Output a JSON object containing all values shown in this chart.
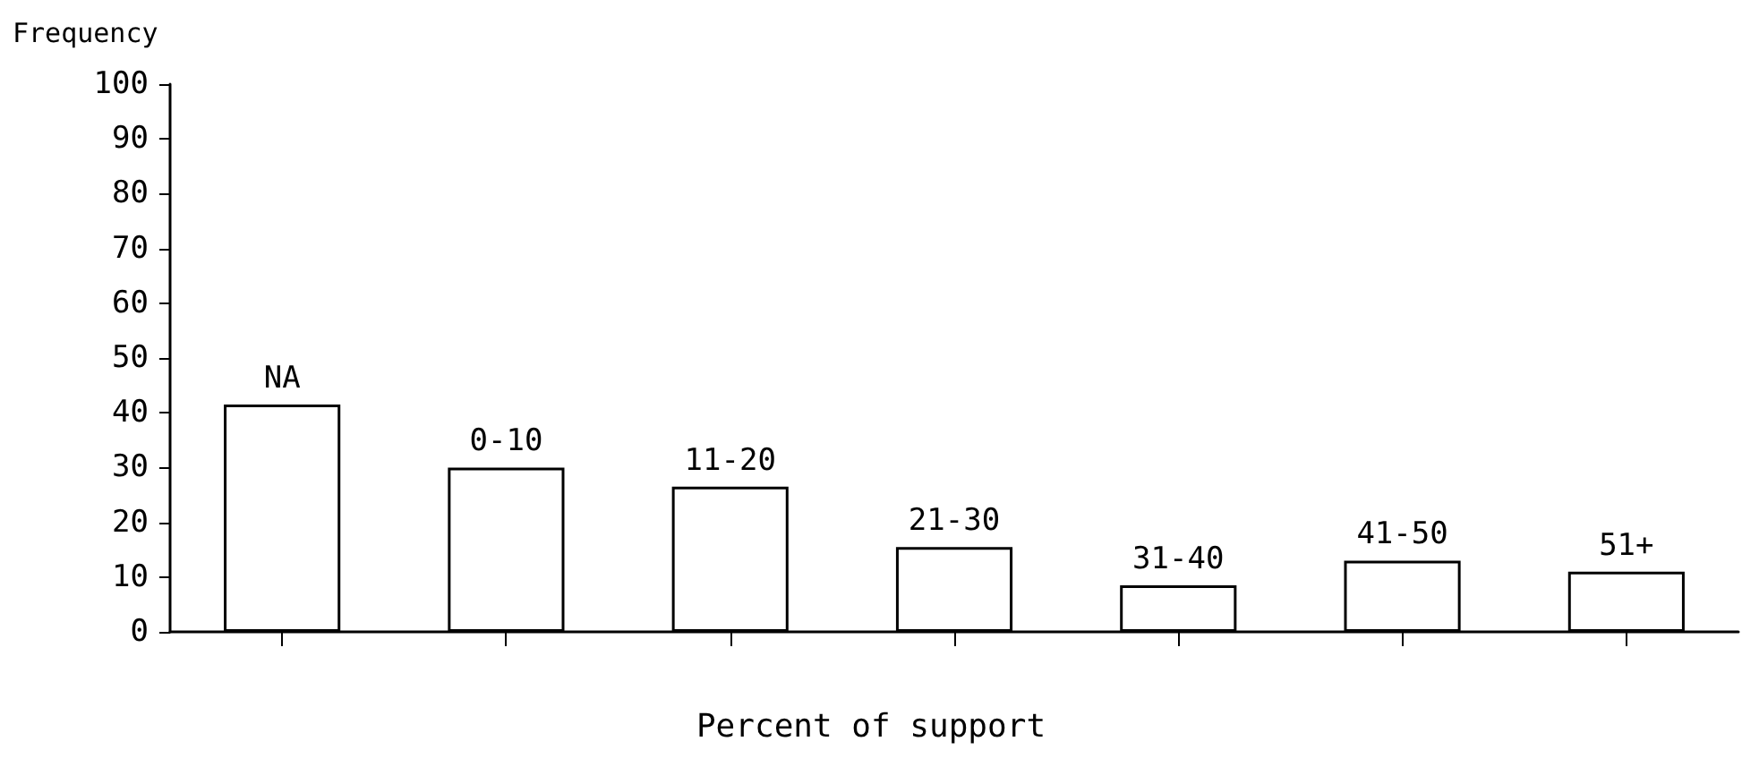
{
  "chart_data": {
    "type": "bar",
    "xlabel": "Percent of support",
    "ylabel": "Frequency",
    "categories": [
      "NA",
      "0-10",
      "11-20",
      "21-30",
      "31-40",
      "41-50",
      "51+"
    ],
    "values": [
      41.5,
      30,
      26.5,
      15.5,
      8.5,
      13,
      11
    ],
    "color": "#ffffff",
    "ylim": [
      0,
      100
    ],
    "yticks": [
      0,
      10,
      20,
      30,
      40,
      50,
      60,
      70,
      80,
      90,
      100
    ],
    "grid": false,
    "tick_labels": "y"
  }
}
